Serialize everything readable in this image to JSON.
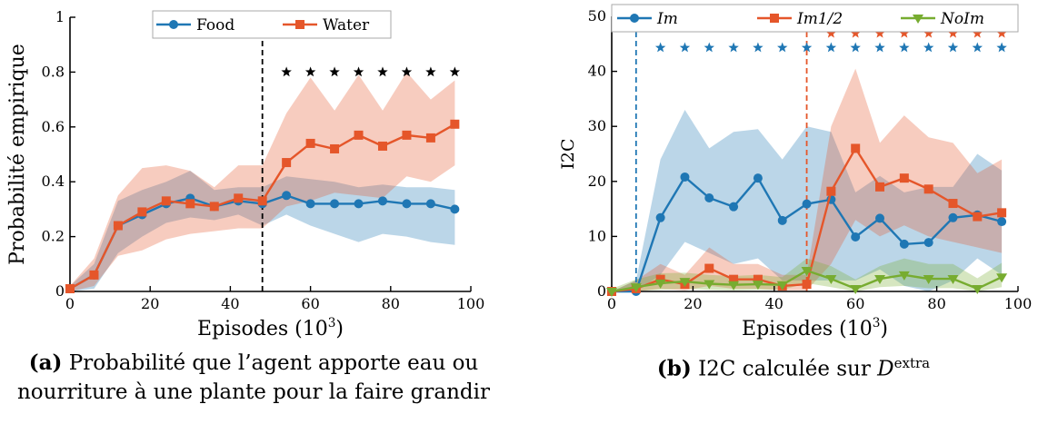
{
  "chart_data": [
    {
      "type": "line",
      "title": "",
      "xlabel": "Episodes (10^3)",
      "ylabel": "Probabilité empirique",
      "xlim": [
        0,
        100
      ],
      "ylim": [
        0,
        1
      ],
      "xticks": [
        "0",
        "20",
        "40",
        "60",
        "80",
        "100"
      ],
      "yticks": [
        "0",
        "0.2",
        "0.4",
        "0.6",
        "0.8",
        "1"
      ],
      "grid": false,
      "legend_position": "top-center",
      "vline_x": 48,
      "x": [
        0,
        6,
        12,
        18,
        24,
        30,
        36,
        42,
        48,
        54,
        60,
        66,
        72,
        78,
        84,
        90,
        96
      ],
      "series": [
        {
          "name": "Food",
          "color": "#1f77b4",
          "marker": "circle",
          "values": [
            0.01,
            0.06,
            0.24,
            0.28,
            0.32,
            0.34,
            0.31,
            0.33,
            0.32,
            0.35,
            0.32,
            0.32,
            0.32,
            0.33,
            0.32,
            0.32,
            0.3
          ],
          "lower": [
            0.0,
            0.01,
            0.14,
            0.2,
            0.25,
            0.27,
            0.26,
            0.28,
            0.24,
            0.28,
            0.24,
            0.21,
            0.18,
            0.21,
            0.2,
            0.18,
            0.17
          ],
          "upper": [
            0.02,
            0.1,
            0.33,
            0.37,
            0.4,
            0.44,
            0.37,
            0.38,
            0.38,
            0.42,
            0.41,
            0.4,
            0.38,
            0.39,
            0.38,
            0.38,
            0.37
          ]
        },
        {
          "name": "Water",
          "color": "#e5562a",
          "marker": "square",
          "values": [
            0.01,
            0.06,
            0.24,
            0.29,
            0.33,
            0.32,
            0.31,
            0.34,
            0.33,
            0.47,
            0.54,
            0.52,
            0.57,
            0.53,
            0.57,
            0.56,
            0.61
          ],
          "lower": [
            0.0,
            0.02,
            0.13,
            0.15,
            0.19,
            0.21,
            0.22,
            0.23,
            0.23,
            0.31,
            0.33,
            0.36,
            0.35,
            0.34,
            0.42,
            0.4,
            0.46
          ],
          "upper": [
            0.02,
            0.12,
            0.35,
            0.45,
            0.46,
            0.44,
            0.38,
            0.46,
            0.46,
            0.65,
            0.78,
            0.66,
            0.79,
            0.66,
            0.8,
            0.7,
            0.77
          ]
        }
      ],
      "significance_stars": {
        "color": "#000000",
        "rows": [
          {
            "y": 0.8,
            "x": [
              54,
              60,
              66,
              72,
              78,
              84,
              90,
              96
            ]
          }
        ]
      }
    },
    {
      "type": "line",
      "title": "",
      "xlabel": "Episodes (10^3)",
      "ylabel": "I2C",
      "xlim": [
        0,
        100
      ],
      "ylim": [
        0,
        50
      ],
      "xticks": [
        "0",
        "20",
        "40",
        "60",
        "80",
        "100"
      ],
      "yticks": [
        "0",
        "10",
        "20",
        "30",
        "40",
        "50"
      ],
      "grid": false,
      "legend_position": "top",
      "vlines": [
        {
          "x": 6,
          "color": "#1f77b4"
        },
        {
          "x": 48,
          "color": "#e5562a"
        }
      ],
      "x": [
        0,
        6,
        12,
        18,
        24,
        30,
        36,
        42,
        48,
        54,
        60,
        66,
        72,
        78,
        84,
        90,
        96
      ],
      "series": [
        {
          "name": "Im",
          "color": "#1f77b4",
          "marker": "circle",
          "values": [
            0,
            0,
            13.4,
            20.8,
            17.0,
            15.4,
            20.6,
            12.9,
            15.9,
            16.7,
            9.9,
            13.3,
            8.6,
            8.9,
            13.4,
            13.9,
            12.7
          ],
          "lower": [
            0,
            0,
            3.0,
            9.0,
            7.0,
            5.0,
            6.0,
            2.0,
            2.0,
            2.0,
            2.0,
            4.0,
            1.0,
            0.0,
            2.0,
            6.0,
            3.0
          ],
          "upper": [
            0,
            2.0,
            24.0,
            33.0,
            26.0,
            29.0,
            29.5,
            24.0,
            30.0,
            29.0,
            18.0,
            21.0,
            18.0,
            19.0,
            19.0,
            25.0,
            22.0
          ]
        },
        {
          "name": "Im1/2",
          "color": "#e5562a",
          "marker": "square",
          "values": [
            0,
            0.5,
            2.2,
            1.3,
            4.2,
            2.2,
            2.2,
            1.0,
            1.3,
            18.2,
            26.0,
            19.0,
            20.6,
            18.6,
            16.0,
            13.6,
            14.3
          ],
          "lower": [
            0,
            0,
            0.5,
            0.2,
            1.0,
            0.5,
            0.5,
            0.2,
            0.2,
            5.0,
            13.0,
            10.0,
            12.0,
            10.0,
            9.0,
            8.0,
            7.0
          ],
          "upper": [
            0,
            2.0,
            5.0,
            3.0,
            8.0,
            5.0,
            5.0,
            3.0,
            3.0,
            30.0,
            40.5,
            27.0,
            32.0,
            28.0,
            27.0,
            21.5,
            24.0
          ]
        },
        {
          "name": "NoIm",
          "color": "#77ac30",
          "marker": "triangle-down",
          "values": [
            0,
            0.8,
            1.5,
            1.8,
            1.4,
            1.2,
            1.3,
            1.2,
            3.8,
            2.3,
            0.5,
            2.3,
            3.0,
            2.3,
            2.3,
            0.5,
            2.6
          ],
          "lower": [
            0,
            0.1,
            0.3,
            0.5,
            0.3,
            0.2,
            0.3,
            0.3,
            1.5,
            0.8,
            0.0,
            0.8,
            1.0,
            0.6,
            0.6,
            0.0,
            0.8
          ],
          "upper": [
            0.5,
            2.2,
            3.3,
            3.4,
            3.0,
            2.8,
            3.0,
            2.6,
            6.0,
            4.6,
            2.2,
            4.6,
            6.0,
            5.0,
            5.0,
            2.4,
            5.2
          ]
        }
      ],
      "significance_stars": {
        "rows": [
          {
            "y": 44.3,
            "color": "#1f77b4",
            "x": [
              12,
              18,
              24,
              30,
              36,
              42,
              48,
              54,
              60,
              66,
              72,
              78,
              84,
              90,
              96
            ]
          },
          {
            "y": 46.9,
            "color": "#e5562a",
            "x": [
              54,
              60,
              66,
              72,
              78,
              84,
              90,
              96
            ]
          }
        ]
      }
    }
  ],
  "captions": {
    "a_label": "(a)",
    "a_text_line1": "Probabilité que l’agent apporte eau ou",
    "a_text_line2": "nourriture à une plante pour la faire grandir",
    "b_label": "(b)",
    "b_text_smallcaps": "I2C",
    "b_text_mid": "calculée sur",
    "b_script": "D",
    "b_sup": "extra"
  }
}
